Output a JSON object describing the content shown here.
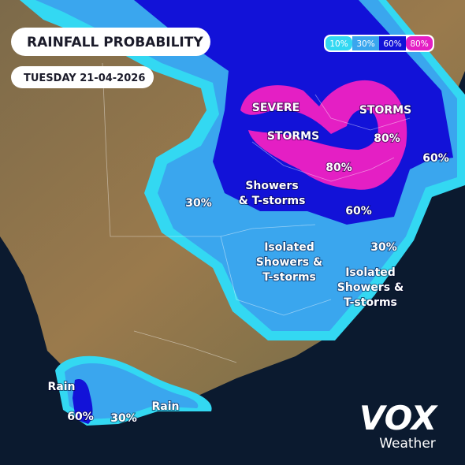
{
  "header": {
    "title": "RAINFALL PROBABILITY",
    "date": "TUESDAY 21-04-2026"
  },
  "legend": {
    "items": [
      {
        "label": "10%",
        "color": "#33d8f2"
      },
      {
        "label": "30%",
        "color": "#3aa6ee"
      },
      {
        "label": "60%",
        "color": "#1212d8"
      },
      {
        "label": "80%",
        "color": "#e41fc4"
      }
    ]
  },
  "labels": [
    {
      "lines": [
        "SEVERE"
      ]
    },
    {
      "lines": [
        "STORMS"
      ]
    },
    {
      "lines": [
        "STORMS"
      ]
    },
    {
      "lines": [
        "80%"
      ]
    },
    {
      "lines": [
        "80%"
      ]
    },
    {
      "lines": [
        "60%"
      ]
    },
    {
      "lines": [
        "30%"
      ]
    },
    {
      "lines": [
        "Showers",
        "& T-storms"
      ]
    },
    {
      "lines": [
        "60%"
      ]
    },
    {
      "lines": [
        "Isolated",
        "Showers &",
        "T-storms"
      ]
    },
    {
      "lines": [
        "30%"
      ]
    },
    {
      "lines": [
        "Isolated",
        "Showers &",
        "T-storms"
      ]
    },
    {
      "lines": [
        "Rain"
      ]
    },
    {
      "lines": [
        "60%"
      ]
    },
    {
      "lines": [
        "30%"
      ]
    },
    {
      "lines": [
        "Rain"
      ]
    }
  ],
  "logo": {
    "brand": "VOX",
    "sub": "Weather"
  }
}
